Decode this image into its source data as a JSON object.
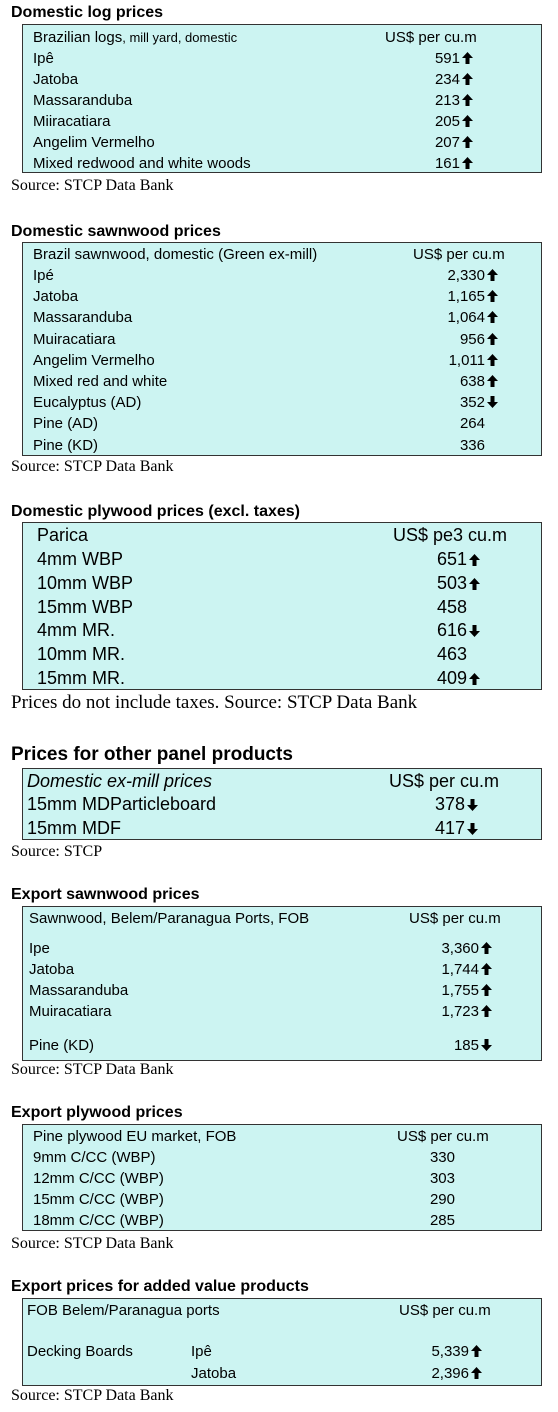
{
  "sections": [
    {
      "id": "domestic-log",
      "title": "Domestic log prices",
      "header_label": "Brazilian logs",
      "header_label_small": ", mill yard, domestic",
      "header_value": "US$ per cu.m",
      "rows": [
        {
          "label": "Ipê",
          "value": "591",
          "trend": "up"
        },
        {
          "label": "Jatoba",
          "value": "234",
          "trend": "up"
        },
        {
          "label": "Massaranduba",
          "value": "213",
          "trend": "up"
        },
        {
          "label": "Miiracatiara",
          "value": "205",
          "trend": "up"
        },
        {
          "label": "Angelim Vermelho",
          "value": "207",
          "trend": "up"
        },
        {
          "label": "Mixed redwood and white woods",
          "value": "161",
          "trend": "up"
        }
      ],
      "source": "Source: STCP Data Bank"
    },
    {
      "id": "domestic-sawnwood",
      "title": "Domestic sawnwood prices",
      "header_label": "Brazil sawnwood, domestic (Green ex-mill)",
      "header_value": "US$ per cu.m",
      "rows": [
        {
          "label": "Ipé",
          "value": "2,330",
          "trend": "up"
        },
        {
          "label": "Jatoba",
          "value": "1,165",
          "trend": "up"
        },
        {
          "label": "Massaranduba",
          "value": "1,064",
          "trend": "up"
        },
        {
          "label": "Muiracatiara",
          "value": "956",
          "trend": "up"
        },
        {
          "label": "Angelim Vermelho",
          "value": "1,011",
          "trend": "up"
        },
        {
          "label": "Mixed red and white",
          "value": "638",
          "trend": "up"
        },
        {
          "label": "Eucalyptus (AD)",
          "value": "352",
          "trend": "down"
        },
        {
          "label": "Pine (AD)",
          "value": "264",
          "trend": "none"
        },
        {
          "label": "Pine (KD)",
          "value": "336",
          "trend": "none"
        }
      ],
      "source": "Source: STCP Data Bank"
    },
    {
      "id": "domestic-plywood",
      "title": "Domestic plywood prices (excl. taxes)",
      "header_label": "Parica",
      "header_value": "US$ pe3 cu.m",
      "rows": [
        {
          "label": "4mm WBP",
          "value": "651",
          "trend": "up"
        },
        {
          "label": "10mm WBP",
          "value": "503",
          "trend": "up"
        },
        {
          "label": "15mm WBP",
          "value": "458",
          "trend": "none"
        },
        {
          "label": "4mm MR.",
          "value": "616",
          "trend": "down"
        },
        {
          "label": "10mm MR.",
          "value": "463",
          "trend": "none"
        },
        {
          "label": "15mm MR.",
          "value": "409",
          "trend": "up"
        }
      ],
      "source": "Prices do not include taxes. Source: STCP Data Bank"
    },
    {
      "id": "other-panel",
      "title": "Prices for other panel products",
      "header_label": "Domestic ex-mill prices",
      "header_value": "US$ per cu.m",
      "rows": [
        {
          "label": "15mm MDParticleboard",
          "value": "378",
          "trend": "down"
        },
        {
          "label": "15mm MDF",
          "value": "417",
          "trend": "down"
        }
      ],
      "source": "Source: STCP"
    },
    {
      "id": "export-sawnwood",
      "title": "Export sawnwood prices",
      "header_label": "Sawnwood, Belem/Paranagua Ports, FOB",
      "header_value": "US$ per cu.m",
      "rows": [
        {
          "label": "Ipe",
          "value": "3,360",
          "trend": "up"
        },
        {
          "label": "Jatoba",
          "value": "1,744",
          "trend": "up"
        },
        {
          "label": "Massaranduba",
          "value": "1,755",
          "trend": "up"
        },
        {
          "label": "Muiracatiara",
          "value": "1,723",
          "trend": "up"
        },
        {
          "label": "Pine (KD)",
          "value": "185",
          "trend": "down"
        }
      ],
      "source": "Source: STCP Data Bank"
    },
    {
      "id": "export-plywood",
      "title": "Export plywood prices",
      "header_label": "Pine plywood EU market, FOB",
      "header_value": "US$ per cu.m",
      "rows": [
        {
          "label": "9mm C/CC (WBP)",
          "value": "330",
          "trend": "none"
        },
        {
          "label": "12mm C/CC (WBP)",
          "value": "303",
          "trend": "none"
        },
        {
          "label": "15mm C/CC (WBP)",
          "value": "290",
          "trend": "none"
        },
        {
          "label": "18mm C/CC (WBP)",
          "value": "285",
          "trend": "none"
        }
      ],
      "source": "Source: STCP Data Bank"
    },
    {
      "id": "export-added-value",
      "title": "Export prices for added value products",
      "header_label": "FOB Belem/Paranagua ports",
      "header_value": "US$ per cu.m",
      "group_label": "Decking Boards",
      "rows": [
        {
          "label": "Ipê",
          "value": "5,339",
          "trend": "up"
        },
        {
          "label": "Jatoba",
          "value": "2,396",
          "trend": "up"
        }
      ],
      "source": "Source: STCP Data Bank"
    }
  ],
  "colors": {
    "box_fill": "#ccf4f2",
    "border": "#333333"
  },
  "icons": {
    "up": "arrow-up-icon",
    "down": "arrow-down-icon"
  }
}
